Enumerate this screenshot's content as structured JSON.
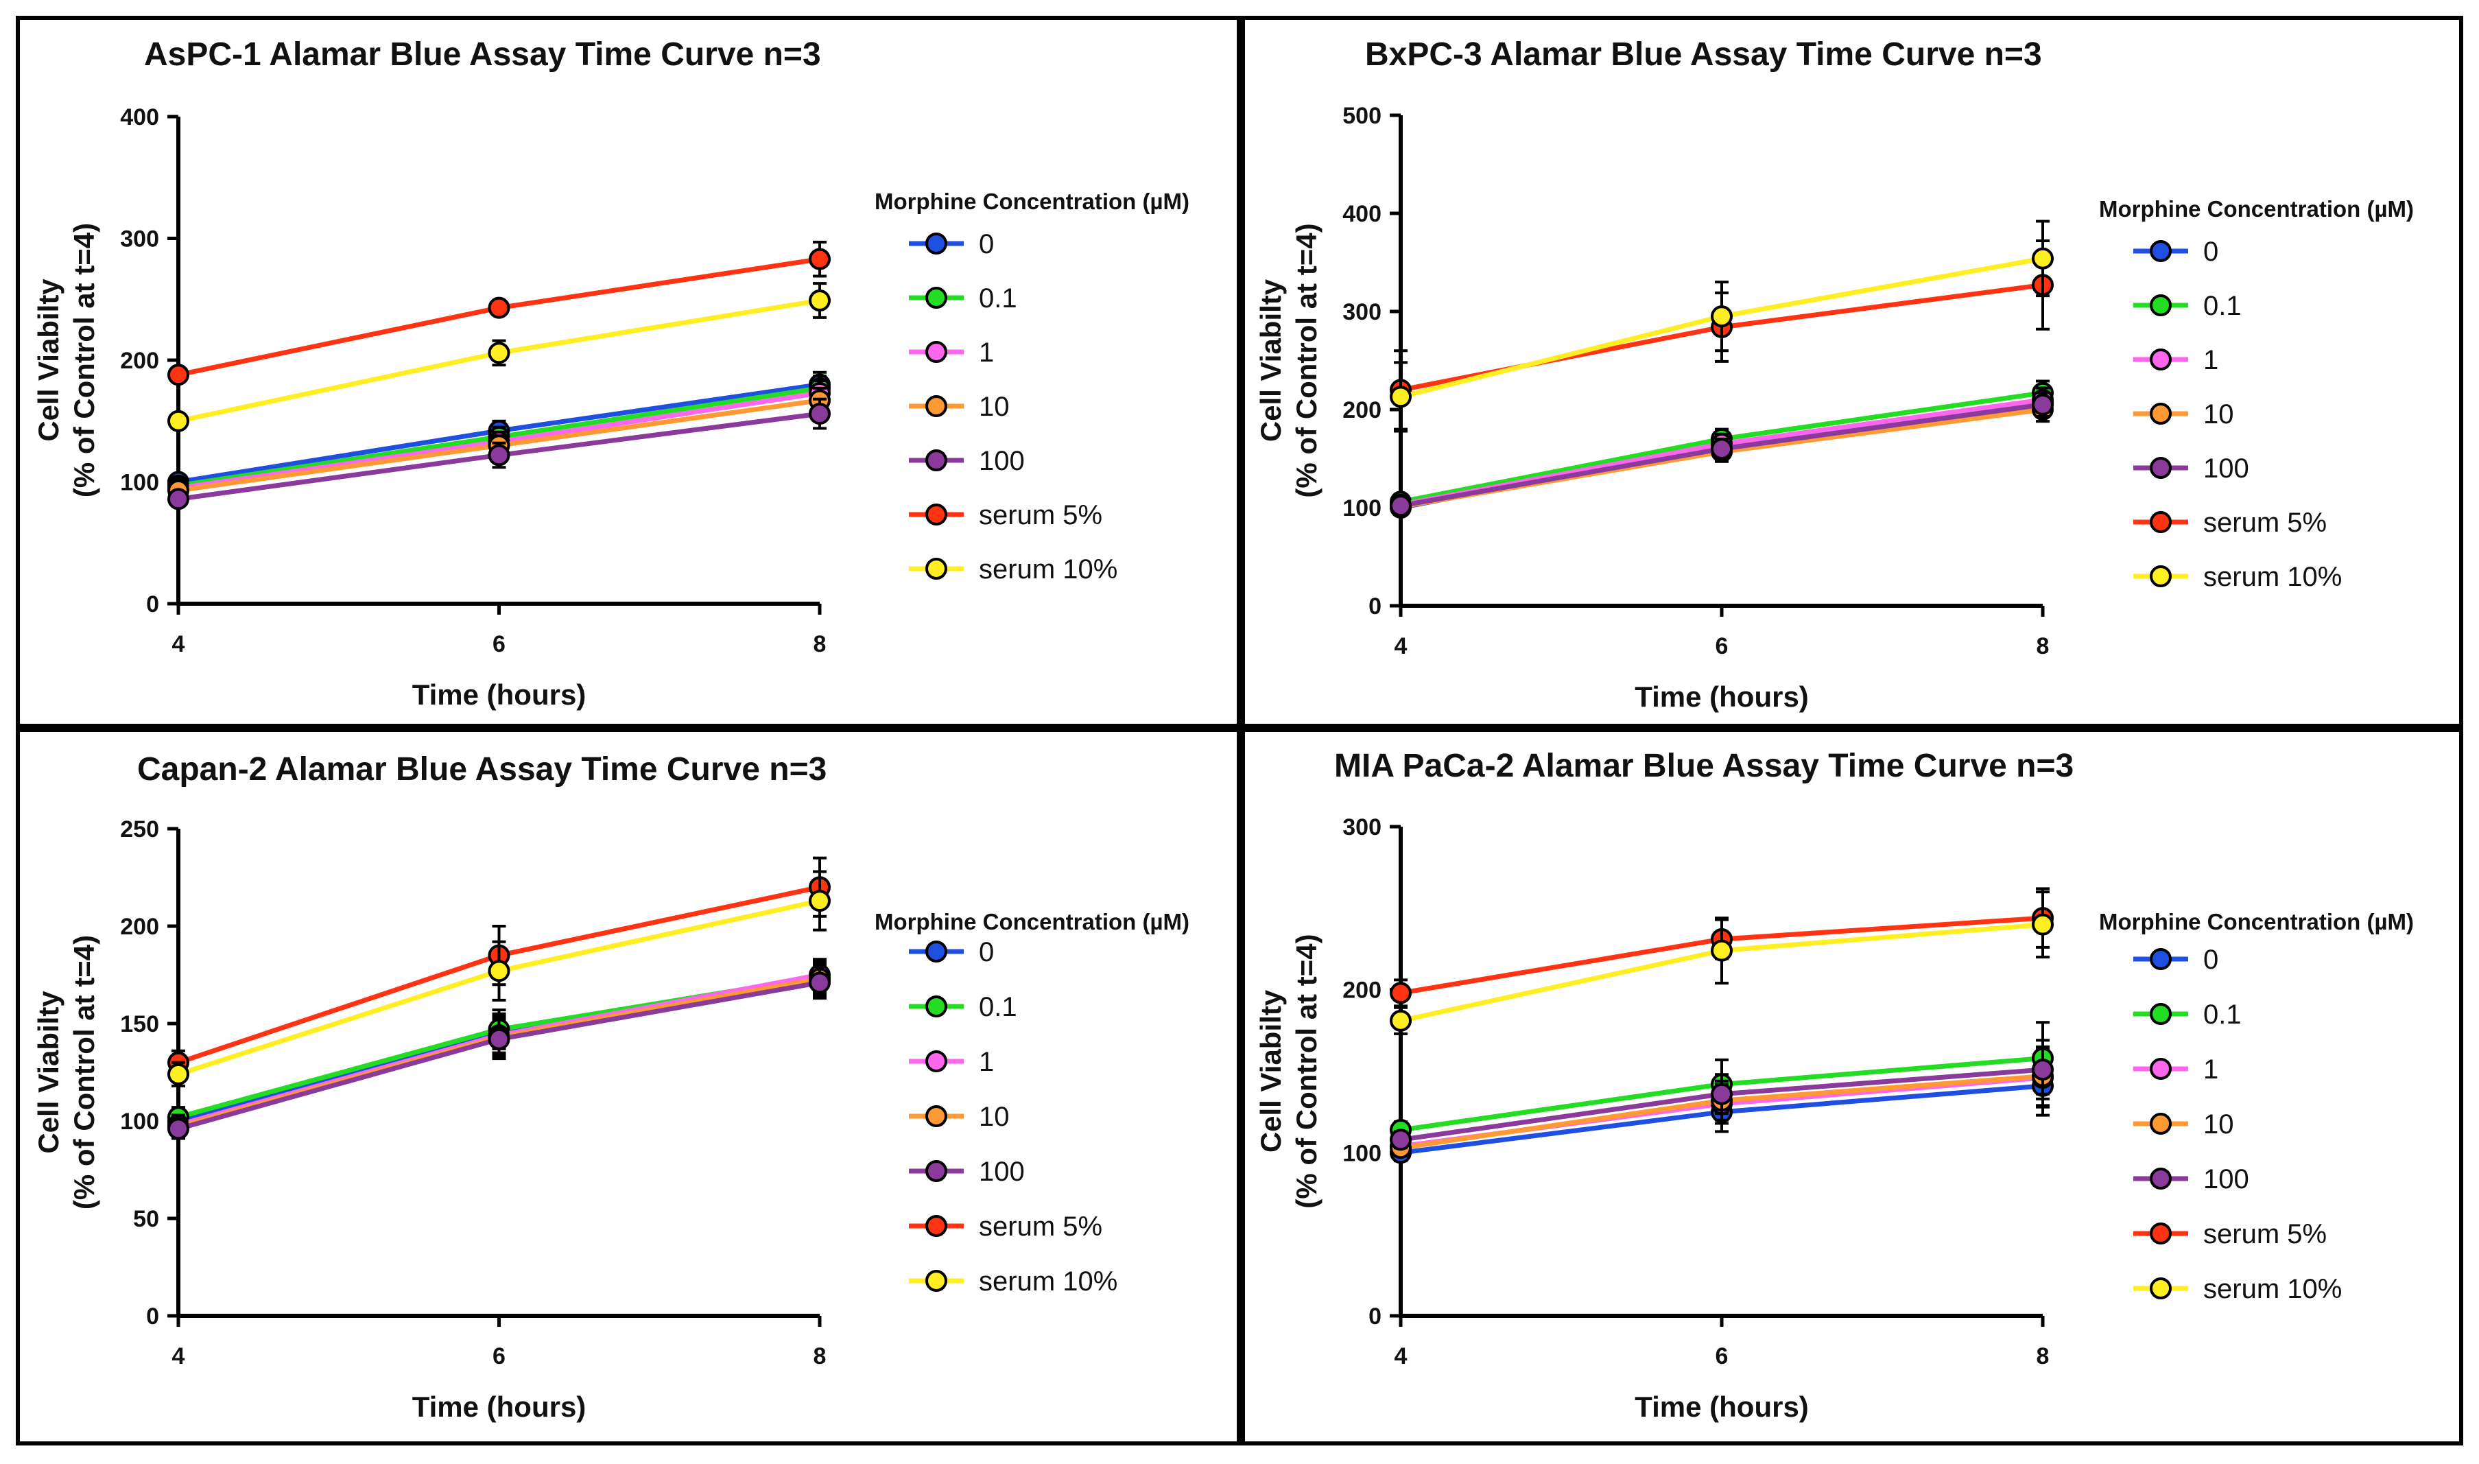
{
  "colors": {
    "0": "#1f4fe0",
    "0.1": "#22dd22",
    "1": "#ff66ee",
    "10": "#ff9933",
    "100": "#8a3a9a",
    "serum 5%": "#ff3311",
    "serum 10%": "#ffee22"
  },
  "chart_data": [
    {
      "type": "line",
      "title": "AsPC-1 Alamar Blue Assay Time Curve n=3",
      "xlabel": "Time (hours)",
      "ylabel": [
        "Cell Viabilty",
        "(% of Control at t=4)"
      ],
      "x": [
        4,
        6,
        8
      ],
      "xticks": [
        "4",
        "6",
        "8"
      ],
      "ylim": [
        0,
        400
      ],
      "yticks": [
        "0",
        "100",
        "200",
        "300",
        "400"
      ],
      "legend_title": "Morphine Concentration (µM)",
      "legend_position": "right",
      "series": [
        {
          "name": "0",
          "values": [
            100,
            142,
            180
          ],
          "errors": [
            5,
            8,
            10
          ]
        },
        {
          "name": "0.1",
          "values": [
            97,
            137,
            177
          ],
          "errors": [
            5,
            8,
            10
          ]
        },
        {
          "name": "1",
          "values": [
            95,
            133,
            173
          ],
          "errors": [
            5,
            8,
            10
          ]
        },
        {
          "name": "10",
          "values": [
            93,
            130,
            167
          ],
          "errors": [
            5,
            8,
            10
          ]
        },
        {
          "name": "100",
          "values": [
            86,
            122,
            156
          ],
          "errors": [
            6,
            10,
            12
          ]
        },
        {
          "name": "serum 5%",
          "values": [
            188,
            243,
            283
          ],
          "errors": [
            5,
            5,
            14
          ]
        },
        {
          "name": "serum 10%",
          "values": [
            150,
            206,
            249
          ],
          "errors": [
            6,
            10,
            14
          ]
        }
      ]
    },
    {
      "type": "line",
      "title": "BxPC-3 Alamar Blue Assay Time Curve n=3",
      "xlabel": "Time (hours)",
      "ylabel": [
        "Cell Viabilty",
        "(% of Control at t=4)"
      ],
      "x": [
        4,
        6,
        8
      ],
      "xticks": [
        "4",
        "6",
        "8"
      ],
      "ylim": [
        0,
        500
      ],
      "yticks": [
        "0",
        "100",
        "200",
        "300",
        "400",
        "500"
      ],
      "legend_title": "Morphine Concentration (µM)",
      "legend_position": "right",
      "series": [
        {
          "name": "0",
          "values": [
            100,
            163,
            207
          ],
          "errors": [
            5,
            10,
            12
          ]
        },
        {
          "name": "0.1",
          "values": [
            106,
            170,
            217
          ],
          "errors": [
            5,
            10,
            12
          ]
        },
        {
          "name": "1",
          "values": [
            103,
            165,
            210
          ],
          "errors": [
            5,
            10,
            12
          ]
        },
        {
          "name": "10",
          "values": [
            101,
            157,
            200
          ],
          "errors": [
            5,
            10,
            12
          ]
        },
        {
          "name": "100",
          "values": [
            102,
            160,
            205
          ],
          "errors": [
            5,
            10,
            12
          ]
        },
        {
          "name": "serum 5%",
          "values": [
            220,
            284,
            327
          ],
          "errors": [
            40,
            35,
            45
          ]
        },
        {
          "name": "serum 10%",
          "values": [
            213,
            295,
            354
          ],
          "errors": [
            35,
            35,
            38
          ]
        }
      ]
    },
    {
      "type": "line",
      "title": "Capan-2 Alamar Blue Assay Time Curve n=3",
      "xlabel": "Time (hours)",
      "ylabel": [
        "Cell Viabilty",
        "(% of Control at t=4)"
      ],
      "x": [
        4,
        6,
        8
      ],
      "xticks": [
        "4",
        "6",
        "8"
      ],
      "ylim": [
        0,
        250
      ],
      "yticks": [
        "0",
        "50",
        "100",
        "150",
        "200",
        "250"
      ],
      "legend_title": "Morphine Concentration (µM)",
      "legend_position": "right",
      "series": [
        {
          "name": "0",
          "values": [
            100,
            145,
            172
          ],
          "errors": [
            5,
            10,
            8
          ]
        },
        {
          "name": "0.1",
          "values": [
            102,
            147,
            174
          ],
          "errors": [
            5,
            10,
            8
          ]
        },
        {
          "name": "1",
          "values": [
            98,
            144,
            175
          ],
          "errors": [
            5,
            10,
            8
          ]
        },
        {
          "name": "10",
          "values": [
            97,
            143,
            173
          ],
          "errors": [
            5,
            10,
            8
          ]
        },
        {
          "name": "100",
          "values": [
            96,
            142,
            171
          ],
          "errors": [
            5,
            10,
            8
          ]
        },
        {
          "name": "serum 5%",
          "values": [
            130,
            185,
            220
          ],
          "errors": [
            6,
            15,
            15
          ]
        },
        {
          "name": "serum 10%",
          "values": [
            124,
            177,
            213
          ],
          "errors": [
            6,
            15,
            15
          ]
        }
      ]
    },
    {
      "type": "line",
      "title": "MIA PaCa-2 Alamar Blue Assay Time Curve n=3",
      "xlabel": "Time (hours)",
      "ylabel": [
        "Cell Viabilty",
        "(% of Control at t=4)"
      ],
      "x": [
        4,
        6,
        8
      ],
      "xticks": [
        "4",
        "6",
        "8"
      ],
      "ylim": [
        0,
        300
      ],
      "yticks": [
        "0",
        "100",
        "200",
        "300"
      ],
      "legend_title": "Morphine Concentration (µM)",
      "legend_position": "right",
      "series": [
        {
          "name": "0",
          "values": [
            100,
            125,
            141
          ],
          "errors": [
            5,
            12,
            18
          ]
        },
        {
          "name": "0.1",
          "values": [
            114,
            142,
            158
          ],
          "errors": [
            5,
            15,
            22
          ]
        },
        {
          "name": "1",
          "values": [
            104,
            130,
            146
          ],
          "errors": [
            5,
            12,
            18
          ]
        },
        {
          "name": "10",
          "values": [
            103,
            132,
            147
          ],
          "errors": [
            5,
            12,
            18
          ]
        },
        {
          "name": "100",
          "values": [
            108,
            136,
            151
          ],
          "errors": [
            5,
            12,
            18
          ]
        },
        {
          "name": "serum 5%",
          "values": [
            198,
            231,
            244
          ],
          "errors": [
            8,
            12,
            18
          ]
        },
        {
          "name": "serum 10%",
          "values": [
            181,
            224,
            240
          ],
          "errors": [
            8,
            20,
            20
          ]
        }
      ]
    }
  ]
}
